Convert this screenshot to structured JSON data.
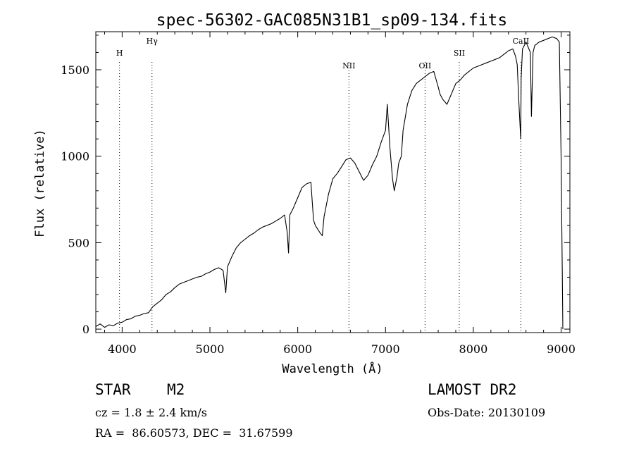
{
  "chart_data": {
    "type": "line",
    "title": "spec-56302-GAC085N31B1_sp09-134.fits",
    "xlabel": "Wavelength (Å)",
    "ylabel": "Flux (relative)",
    "xlim": [
      3700,
      9100
    ],
    "ylim": [
      -20,
      1720
    ],
    "xticks": [
      4000,
      5000,
      6000,
      7000,
      8000,
      9000
    ],
    "yticks": [
      0,
      500,
      1000,
      1500
    ],
    "xtick_labels": [
      "4000",
      "5000",
      "6000",
      "7000",
      "8000",
      "9000"
    ],
    "ytick_labels": [
      "0",
      "500",
      "1000",
      "1500"
    ],
    "lines": [
      {
        "label": "H",
        "wavelength": 3970
      },
      {
        "label": "Hγ",
        "wavelength": 4340
      },
      {
        "label": "NII",
        "wavelength": 6583
      },
      {
        "label": "OII",
        "wavelength": 7450
      },
      {
        "label": "SII",
        "wavelength": 7840
      },
      {
        "label": "CaII",
        "wavelength": 8542
      }
    ],
    "series": [
      {
        "name": "flux",
        "x": [
          3700,
          3750,
          3800,
          3850,
          3900,
          3950,
          4000,
          4050,
          4100,
          4150,
          4200,
          4250,
          4300,
          4350,
          4400,
          4450,
          4500,
          4550,
          4600,
          4650,
          4700,
          4750,
          4800,
          4850,
          4900,
          4950,
          5000,
          5050,
          5100,
          5150,
          5180,
          5200,
          5250,
          5300,
          5350,
          5400,
          5450,
          5500,
          5550,
          5600,
          5650,
          5700,
          5750,
          5800,
          5850,
          5880,
          5895,
          5910,
          5950,
          6000,
          6050,
          6100,
          6150,
          6180,
          6200,
          6250,
          6280,
          6300,
          6350,
          6400,
          6450,
          6500,
          6550,
          6600,
          6650,
          6700,
          6750,
          6800,
          6850,
          6900,
          6950,
          7000,
          7020,
          7050,
          7080,
          7100,
          7130,
          7150,
          7180,
          7200,
          7250,
          7300,
          7350,
          7400,
          7450,
          7500,
          7550,
          7600,
          7620,
          7650,
          7700,
          7750,
          7800,
          7850,
          7900,
          7950,
          8000,
          8050,
          8100,
          8150,
          8200,
          8250,
          8300,
          8350,
          8400,
          8450,
          8480,
          8500,
          8520,
          8540,
          8545,
          8560,
          8600,
          8650,
          8662,
          8680,
          8700,
          8750,
          8800,
          8850,
          8900,
          8950,
          8980,
          9000,
          9020
        ],
        "y": [
          15,
          30,
          10,
          25,
          20,
          35,
          40,
          55,
          60,
          75,
          80,
          90,
          95,
          130,
          150,
          170,
          200,
          215,
          240,
          260,
          270,
          280,
          290,
          300,
          305,
          320,
          330,
          345,
          355,
          340,
          210,
          360,
          420,
          470,
          500,
          520,
          540,
          555,
          575,
          590,
          600,
          610,
          625,
          640,
          660,
          560,
          440,
          660,
          700,
          760,
          820,
          840,
          850,
          630,
          600,
          560,
          540,
          650,
          780,
          870,
          900,
          940,
          980,
          990,
          960,
          910,
          860,
          890,
          950,
          1000,
          1080,
          1150,
          1300,
          1050,
          870,
          800,
          880,
          960,
          1000,
          1150,
          1300,
          1380,
          1420,
          1440,
          1460,
          1480,
          1490,
          1400,
          1360,
          1330,
          1300,
          1360,
          1420,
          1440,
          1470,
          1490,
          1510,
          1520,
          1530,
          1540,
          1550,
          1560,
          1570,
          1590,
          1610,
          1620,
          1580,
          1530,
          1300,
          1100,
          1450,
          1620,
          1660,
          1600,
          1230,
          1600,
          1640,
          1660,
          1670,
          1680,
          1690,
          1680,
          1660,
          1000,
          0
        ]
      }
    ]
  },
  "info": {
    "object_class": "STAR",
    "subclass": "M2",
    "survey": "LAMOST DR2",
    "cz": "cz = 1.8 ± 2.4 km/s",
    "obs_date": "Obs-Date: 20130109",
    "coords": "RA =  86.60573, DEC =  31.67599"
  }
}
